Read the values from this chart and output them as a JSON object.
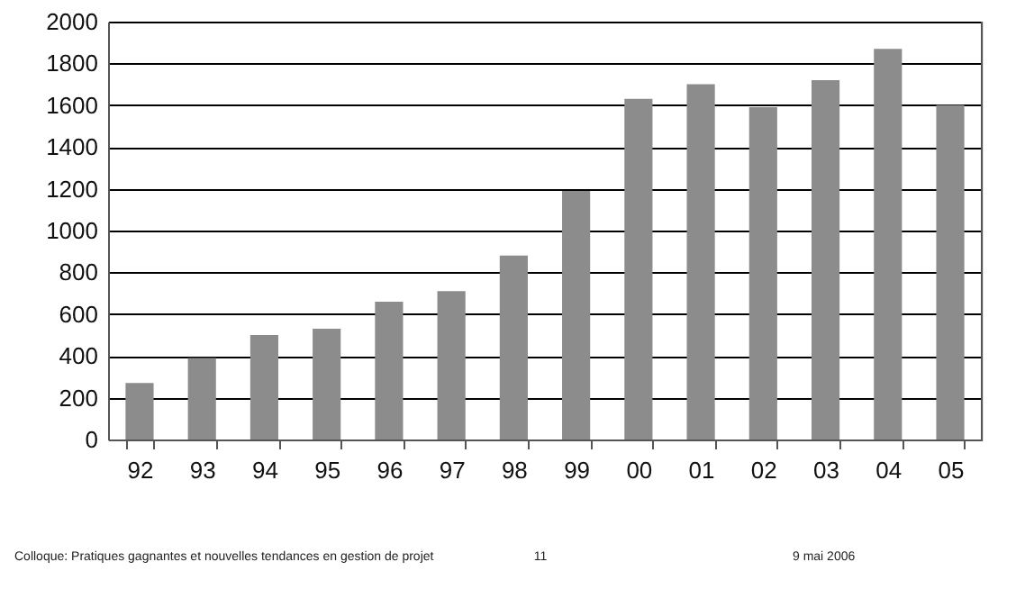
{
  "chart_data": {
    "type": "bar",
    "categories": [
      "92",
      "93",
      "94",
      "95",
      "96",
      "97",
      "98",
      "99",
      "00",
      "01",
      "02",
      "03",
      "04",
      "05"
    ],
    "values": [
      270,
      390,
      500,
      530,
      660,
      710,
      880,
      1190,
      1630,
      1700,
      1590,
      1720,
      1870,
      1600
    ],
    "color": "#8c8c8c",
    "ylim": [
      0,
      2000
    ],
    "yticks": [
      0,
      200,
      400,
      600,
      800,
      1000,
      1200,
      1400,
      1600,
      1800,
      2000
    ],
    "grid": "y",
    "annotations": [
      "Colloque: Pratiques gagnantes et nouvelles tendances en gestion de projet",
      "11",
      "9 mai 2006"
    ]
  }
}
